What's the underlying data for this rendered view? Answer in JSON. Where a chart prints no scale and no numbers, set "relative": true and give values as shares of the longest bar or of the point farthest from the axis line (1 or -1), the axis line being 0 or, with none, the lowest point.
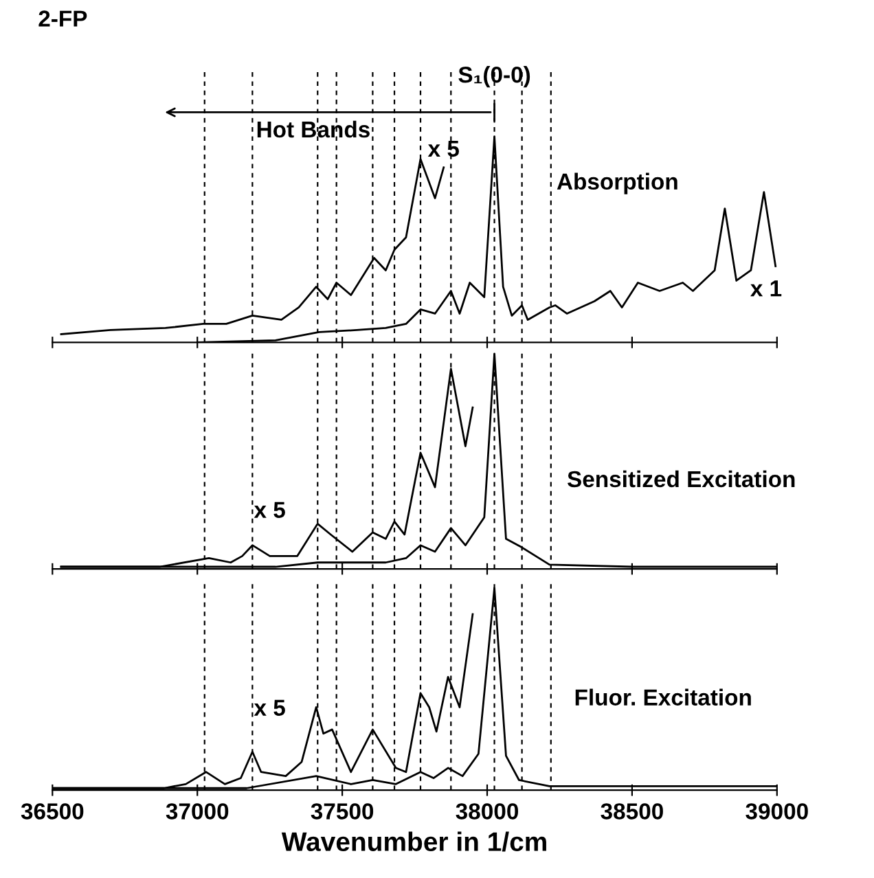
{
  "chart_data": [
    {
      "type": "line",
      "relative": true,
      "title": "2-FP",
      "xlim": [
        36500,
        39000
      ],
      "xticks": [
        36500,
        37000,
        37500,
        38000,
        38500,
        39000
      ],
      "tick_labels": false,
      "series": [
        {
          "color": "#000000",
          "x": [
            36530,
            36700,
            36890,
            37020,
            37100,
            37190,
            37290,
            37350,
            37410,
            37450,
            37480,
            37530,
            37610,
            37650,
            37680,
            37720,
            37770,
            37820,
            37850
          ],
          "values": [
            0.04,
            0.06,
            0.07,
            0.09,
            0.09,
            0.13,
            0.11,
            0.17,
            0.27,
            0.21,
            0.29,
            0.23,
            0.41,
            0.35,
            0.45,
            0.51,
            0.89,
            0.7,
            0.85
          ]
        },
        {
          "color": "#000000",
          "x": [
            37000,
            37270,
            37420,
            37550,
            37650,
            37720,
            37770,
            37820,
            37875,
            37905,
            37940,
            37990,
            38025,
            38055,
            38085,
            38120,
            38140,
            38215,
            38235,
            38275,
            38370,
            38425,
            38465,
            38520,
            38595,
            38675,
            38710,
            38785,
            38820,
            38860,
            38910,
            38955,
            38995
          ],
          "values": [
            0.0,
            0.01,
            0.05,
            0.06,
            0.07,
            0.09,
            0.16,
            0.14,
            0.25,
            0.14,
            0.29,
            0.22,
            1.0,
            0.27,
            0.13,
            0.18,
            0.11,
            0.17,
            0.18,
            0.14,
            0.2,
            0.25,
            0.17,
            0.29,
            0.25,
            0.29,
            0.25,
            0.35,
            0.65,
            0.3,
            0.35,
            0.73,
            0.37
          ]
        }
      ],
      "ref_lines": [
        {
          "axis": "x",
          "value": 37025,
          "line_style": "dashed",
          "color": "#000000"
        },
        {
          "axis": "x",
          "value": 37190,
          "line_style": "dashed",
          "color": "#000000"
        },
        {
          "axis": "x",
          "value": 37415,
          "line_style": "dashed",
          "color": "#000000"
        },
        {
          "axis": "x",
          "value": 37480,
          "line_style": "dashed",
          "color": "#000000"
        },
        {
          "axis": "x",
          "value": 37605,
          "line_style": "dashed",
          "color": "#000000"
        },
        {
          "axis": "x",
          "value": 37680,
          "line_style": "dashed",
          "color": "#000000"
        },
        {
          "axis": "x",
          "value": 37770,
          "line_style": "dashed",
          "color": "#000000"
        },
        {
          "axis": "x",
          "value": 37875,
          "line_style": "dashed",
          "color": "#000000"
        },
        {
          "axis": "x",
          "value": 38025,
          "line_style": "dashed",
          "color": "#000000"
        },
        {
          "axis": "x",
          "value": 38120,
          "line_style": "dashed",
          "color": "#000000"
        },
        {
          "axis": "x",
          "value": 38220,
          "line_style": "dashed",
          "color": "#000000"
        }
      ],
      "annotations": [
        "S₁(0-0)",
        "Hot Bands",
        "x 5",
        "Absorption",
        "x 1"
      ]
    },
    {
      "type": "line",
      "relative": true,
      "xlim": [
        36500,
        39000
      ],
      "xticks": [
        36500,
        37000,
        37500,
        38000,
        38500,
        39000
      ],
      "tick_labels": false,
      "series": [
        {
          "color": "#000000",
          "x": [
            36530,
            36870,
            37040,
            37115,
            37155,
            37190,
            37250,
            37345,
            37415,
            37460,
            37535,
            37605,
            37650,
            37680,
            37715,
            37770,
            37820,
            37875,
            37925,
            37950
          ],
          "values": [
            0.01,
            0.01,
            0.05,
            0.03,
            0.06,
            0.11,
            0.06,
            0.06,
            0.21,
            0.16,
            0.08,
            0.17,
            0.14,
            0.22,
            0.16,
            0.54,
            0.38,
            0.93,
            0.57,
            0.75
          ]
        },
        {
          "color": "#000000",
          "x": [
            36530,
            37270,
            37415,
            37650,
            37720,
            37770,
            37820,
            37875,
            37925,
            37990,
            38025,
            38065,
            38120,
            38215,
            38500,
            38995
          ],
          "values": [
            0.01,
            0.01,
            0.03,
            0.03,
            0.05,
            0.11,
            0.08,
            0.19,
            0.11,
            0.24,
            1.0,
            0.14,
            0.1,
            0.02,
            0.01,
            0.01
          ]
        }
      ],
      "ref_lines": [
        {
          "axis": "x",
          "value": 37025,
          "line_style": "dashed",
          "color": "#000000"
        },
        {
          "axis": "x",
          "value": 37190,
          "line_style": "dashed",
          "color": "#000000"
        },
        {
          "axis": "x",
          "value": 37415,
          "line_style": "dashed",
          "color": "#000000"
        },
        {
          "axis": "x",
          "value": 37480,
          "line_style": "dashed",
          "color": "#000000"
        },
        {
          "axis": "x",
          "value": 37605,
          "line_style": "dashed",
          "color": "#000000"
        },
        {
          "axis": "x",
          "value": 37680,
          "line_style": "dashed",
          "color": "#000000"
        },
        {
          "axis": "x",
          "value": 37770,
          "line_style": "dashed",
          "color": "#000000"
        },
        {
          "axis": "x",
          "value": 37875,
          "line_style": "dashed",
          "color": "#000000"
        },
        {
          "axis": "x",
          "value": 38025,
          "line_style": "dashed",
          "color": "#000000"
        },
        {
          "axis": "x",
          "value": 38120,
          "line_style": "dashed",
          "color": "#000000"
        },
        {
          "axis": "x",
          "value": 38220,
          "line_style": "dashed",
          "color": "#000000"
        }
      ],
      "annotations": [
        "x 5",
        "Sensitized Excitation"
      ]
    },
    {
      "type": "line",
      "relative": true,
      "xlabel": "Wavenumber in 1/cm",
      "xlim": [
        36500,
        39000
      ],
      "xticks": [
        36500,
        37000,
        37500,
        38000,
        38500,
        39000
      ],
      "series": [
        {
          "color": "#000000",
          "x": [
            36500,
            36885,
            36960,
            37030,
            37095,
            37150,
            37190,
            37220,
            37305,
            37360,
            37410,
            37435,
            37465,
            37530,
            37605,
            37685,
            37720,
            37770,
            37800,
            37825,
            37865,
            37905,
            37950
          ],
          "values": [
            0.01,
            0.01,
            0.03,
            0.09,
            0.03,
            0.06,
            0.19,
            0.09,
            0.07,
            0.14,
            0.41,
            0.28,
            0.3,
            0.09,
            0.3,
            0.11,
            0.09,
            0.48,
            0.41,
            0.29,
            0.56,
            0.41,
            0.87
          ]
        },
        {
          "color": "#000000",
          "x": [
            36500,
            37170,
            37410,
            37530,
            37605,
            37685,
            37770,
            37815,
            37865,
            37915,
            37970,
            38025,
            38065,
            38110,
            38215,
            39000
          ],
          "values": [
            0.01,
            0.01,
            0.07,
            0.03,
            0.05,
            0.03,
            0.09,
            0.06,
            0.11,
            0.07,
            0.18,
            1.0,
            0.17,
            0.05,
            0.02,
            0.02
          ]
        }
      ],
      "ref_lines": [
        {
          "axis": "x",
          "value": 37025,
          "line_style": "dashed",
          "color": "#000000"
        },
        {
          "axis": "x",
          "value": 37190,
          "line_style": "dashed",
          "color": "#000000"
        },
        {
          "axis": "x",
          "value": 37415,
          "line_style": "dashed",
          "color": "#000000"
        },
        {
          "axis": "x",
          "value": 37480,
          "line_style": "dashed",
          "color": "#000000"
        },
        {
          "axis": "x",
          "value": 37605,
          "line_style": "dashed",
          "color": "#000000"
        },
        {
          "axis": "x",
          "value": 37680,
          "line_style": "dashed",
          "color": "#000000"
        },
        {
          "axis": "x",
          "value": 37770,
          "line_style": "dashed",
          "color": "#000000"
        },
        {
          "axis": "x",
          "value": 37875,
          "line_style": "dashed",
          "color": "#000000"
        },
        {
          "axis": "x",
          "value": 38025,
          "line_style": "dashed",
          "color": "#000000"
        },
        {
          "axis": "x",
          "value": 38120,
          "line_style": "dashed",
          "color": "#000000"
        },
        {
          "axis": "x",
          "value": 38220,
          "line_style": "dashed",
          "color": "#000000"
        }
      ],
      "annotations": [
        "x 5",
        "Fluor. Excitation"
      ]
    }
  ]
}
